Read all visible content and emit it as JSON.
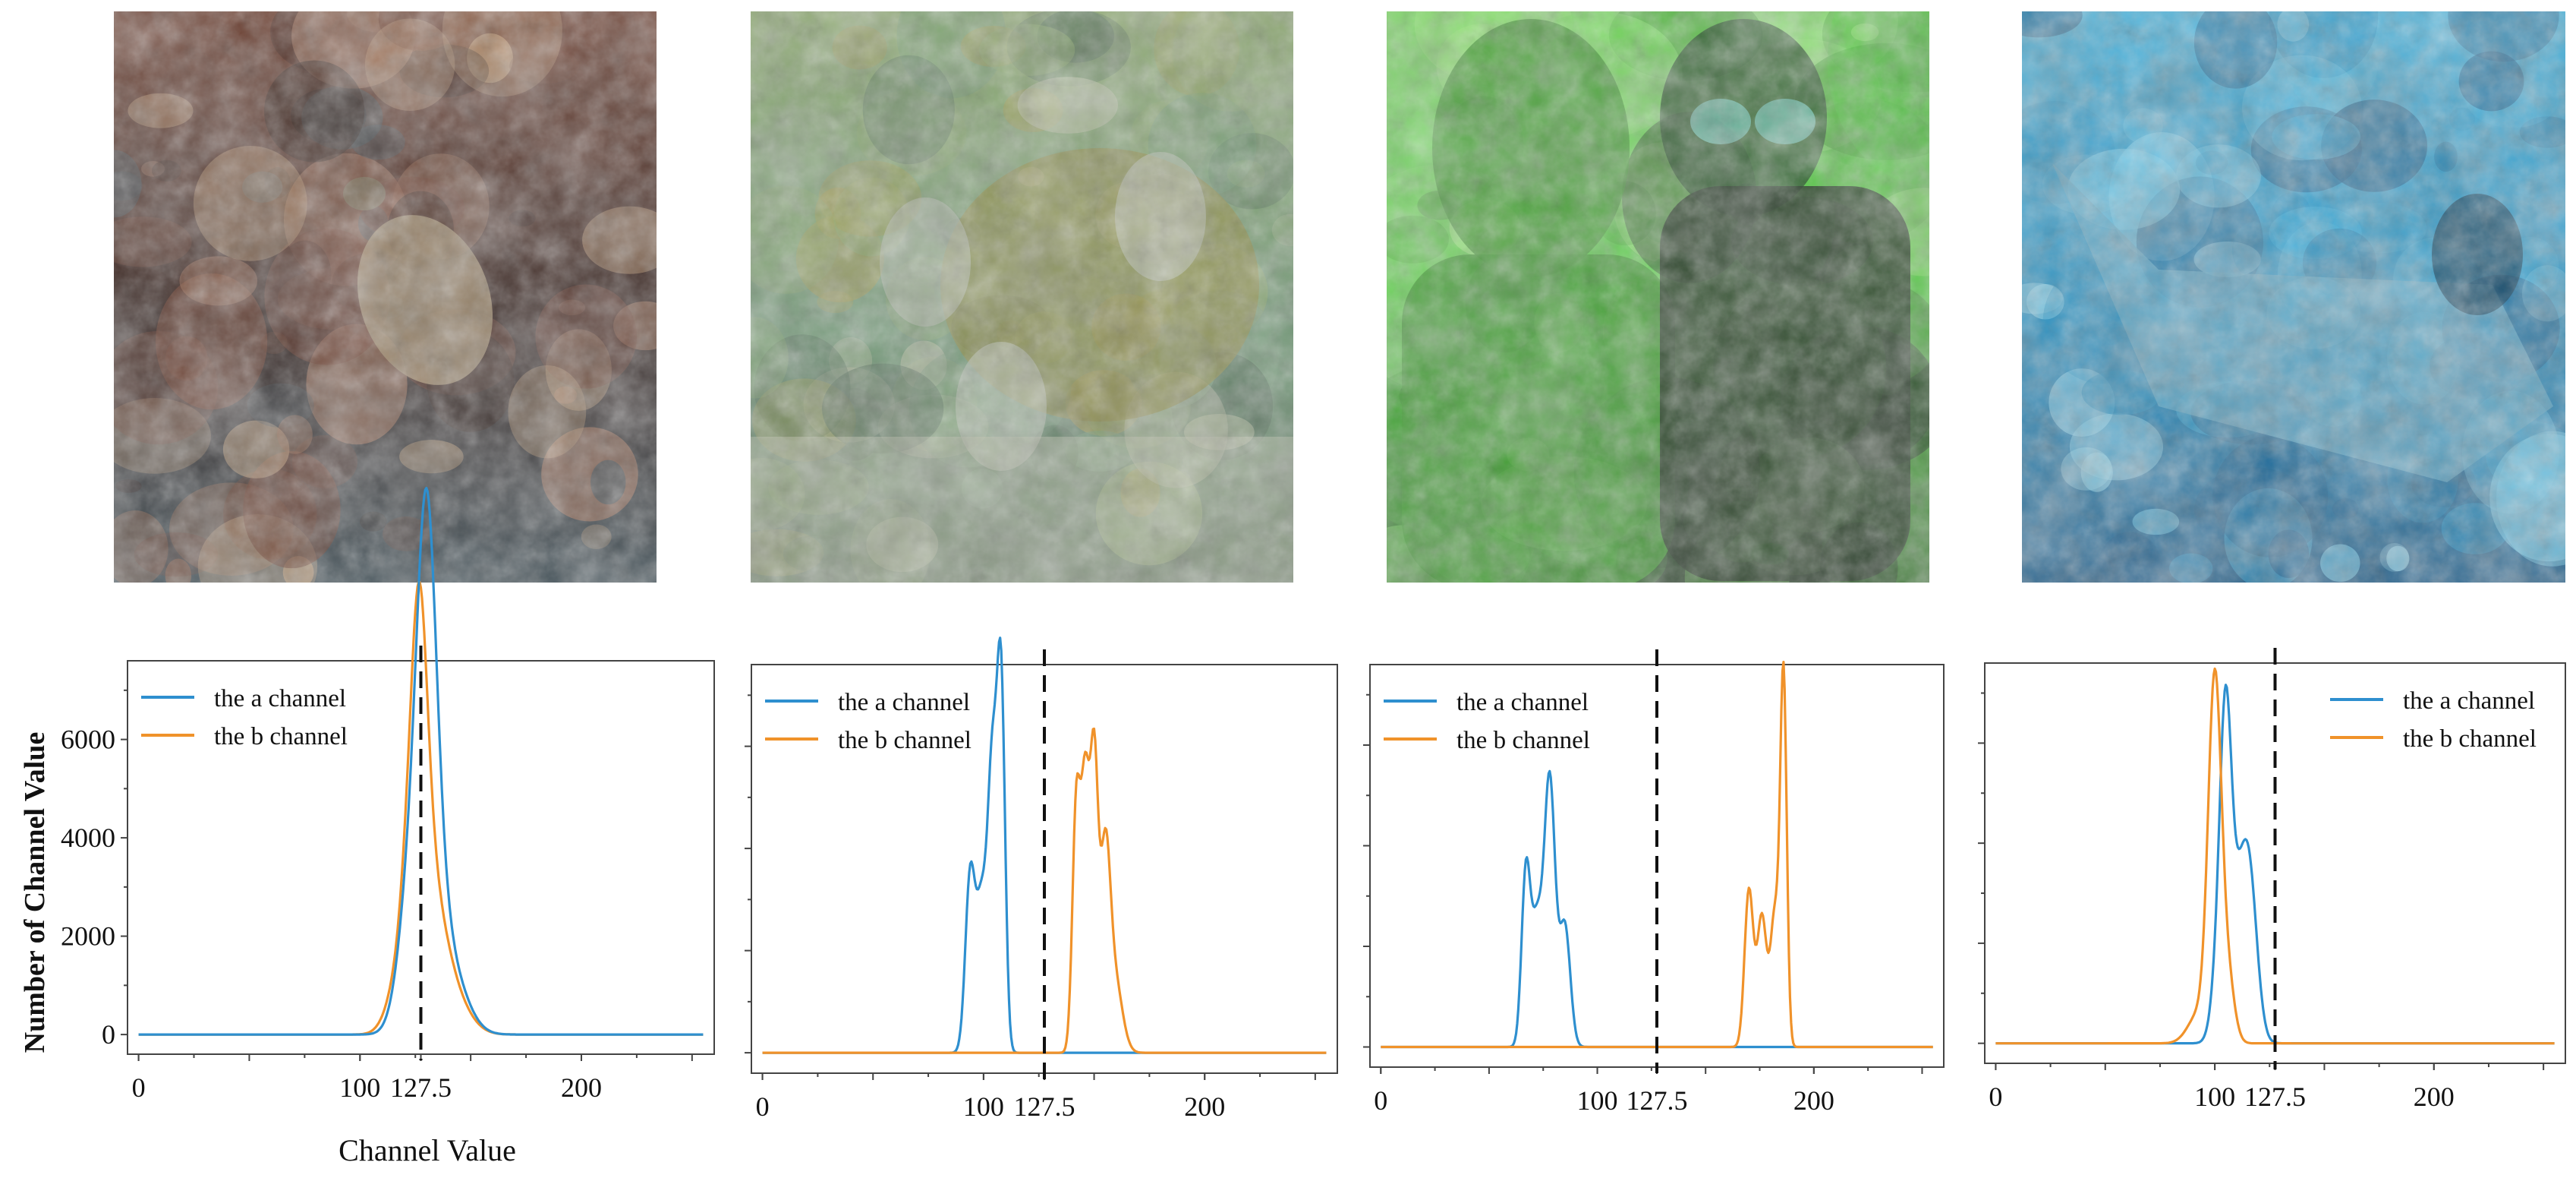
{
  "figure": {
    "photos": [
      {
        "name": "photo-turtle-reef",
        "description": "reef",
        "palette": [
          "#2b1a16",
          "#6b3a2a",
          "#9a6a52",
          "#3a4a52",
          "#c9a27a"
        ]
      },
      {
        "name": "photo-green-reef-fish",
        "description": "reef",
        "palette": [
          "#6f9a74",
          "#8aa96a",
          "#a29a4a",
          "#4c6a52",
          "#b8bfa0"
        ]
      },
      {
        "name": "photo-green-statue-diver",
        "description": "statue",
        "palette": [
          "#4fd23f",
          "#7ae060",
          "#3aa52a",
          "#1e3a1e",
          "#9cef7a"
        ]
      },
      {
        "name": "photo-blue-wreck",
        "description": "wreck",
        "palette": [
          "#1f8fc4",
          "#3fb3e0",
          "#6fcaea",
          "#165a8a",
          "#8fd8f0"
        ]
      }
    ],
    "colors": {
      "a_channel": "#2e8fcf",
      "b_channel": "#f0922a",
      "axis": "#333333"
    },
    "ylabel": "Number of Channel Value",
    "xlabel": "Channel Value"
  },
  "chart_data": [
    {
      "type": "line",
      "xlim": [
        -5,
        260
      ],
      "ylim": [
        -400,
        7600
      ],
      "xticks": [
        0,
        100,
        127.5,
        200
      ],
      "xtick_labels": [
        "0",
        "100",
        "127.5",
        "200"
      ],
      "yticks": [
        0,
        2000,
        4000,
        6000
      ],
      "ytick_labels": [
        "0",
        "2000",
        "4000",
        "6000"
      ],
      "vline": 127.5,
      "legend": "top-left",
      "xlabel": "Channel Value",
      "ylabel": "Number of Channel Value",
      "series": [
        {
          "name": "the a channel",
          "peaks": [
            [
              125,
              4000,
              6
            ],
            [
              130,
              5400,
              4
            ],
            [
              133,
              2500,
              5
            ],
            [
              139,
              1500,
              8
            ]
          ]
        },
        {
          "name": "the b channel",
          "peaks": [
            [
              120,
              1500,
              6
            ],
            [
              124,
              3300,
              4
            ],
            [
              127,
              2500,
              3
            ],
            [
              129,
              2400,
              4
            ],
            [
              133,
              1800,
              6
            ],
            [
              140,
              900,
              8
            ]
          ]
        }
      ]
    },
    {
      "type": "line",
      "xlim": [
        -5,
        260
      ],
      "ylim": [
        -400,
        7600
      ],
      "xticks": [
        0,
        100,
        127.5,
        200
      ],
      "xtick_labels": [
        "0",
        "100",
        "127.5",
        "200"
      ],
      "yticks": [
        0,
        2000,
        4000,
        6000
      ],
      "ytick_labels": [
        "",
        "",
        "",
        ""
      ],
      "vline": 127.5,
      "legend": "top-left",
      "xlabel": "",
      "ylabel": "",
      "series": [
        {
          "name": "the a channel",
          "peaks": [
            [
              94,
              3500,
              2.2
            ],
            [
              99,
              2700,
              2.2
            ],
            [
              104,
              5600,
              2.2
            ],
            [
              108,
              6800,
              1.8
            ]
          ]
        },
        {
          "name": "the b channel",
          "peaks": [
            [
              142,
              4900,
              1.8
            ],
            [
              146,
              5000,
              1.8
            ],
            [
              150,
              5600,
              1.8
            ],
            [
              155,
              3500,
              2.2
            ],
            [
              159,
              1500,
              3.5
            ]
          ]
        }
      ]
    },
    {
      "type": "line",
      "xlim": [
        -5,
        260
      ],
      "ylim": [
        -400,
        7600
      ],
      "xticks": [
        0,
        100,
        127.5,
        200
      ],
      "xtick_labels": [
        "0",
        "100",
        "127.5",
        "200"
      ],
      "yticks": [
        0,
        2000,
        4000,
        6000
      ],
      "ytick_labels": [
        "",
        "",
        "",
        ""
      ],
      "vline": 127.5,
      "legend": "top-left",
      "xlabel": "",
      "ylabel": "",
      "series": [
        {
          "name": "the a channel",
          "peaks": [
            [
              67,
              3400,
              2
            ],
            [
              72,
              2400,
              2.5
            ],
            [
              78,
              5300,
              2.5
            ],
            [
              85,
              2400,
              2.5
            ]
          ]
        },
        {
          "name": "the b channel",
          "peaks": [
            [
              170,
              3100,
              2
            ],
            [
              176,
              2600,
              2.2
            ],
            [
              182,
              2600,
              2
            ],
            [
              186,
              7300,
              1.5
            ]
          ]
        }
      ]
    },
    {
      "type": "line",
      "xlim": [
        -5,
        260
      ],
      "ylim": [
        -400,
        7600
      ],
      "xticks": [
        0,
        100,
        127.5,
        200
      ],
      "xtick_labels": [
        "0",
        "100",
        "127.5",
        "200"
      ],
      "yticks": [
        0,
        2000,
        4000,
        6000
      ],
      "ytick_labels": [
        "",
        "",
        "",
        ""
      ],
      "vline": 127.5,
      "legend": "top-right",
      "xlabel": "",
      "ylabel": "",
      "series": [
        {
          "name": "the a channel",
          "peaks": [
            [
              102,
              1400,
              3
            ],
            [
              105,
              4600,
              2.5
            ],
            [
              110,
              2800,
              5
            ],
            [
              116,
              2400,
              3.5
            ]
          ]
        },
        {
          "name": "the b channel",
          "peaks": [
            [
              100,
              7100,
              3
            ],
            [
              93,
              600,
              5
            ],
            [
              106,
              1200,
              3
            ]
          ]
        }
      ]
    }
  ]
}
